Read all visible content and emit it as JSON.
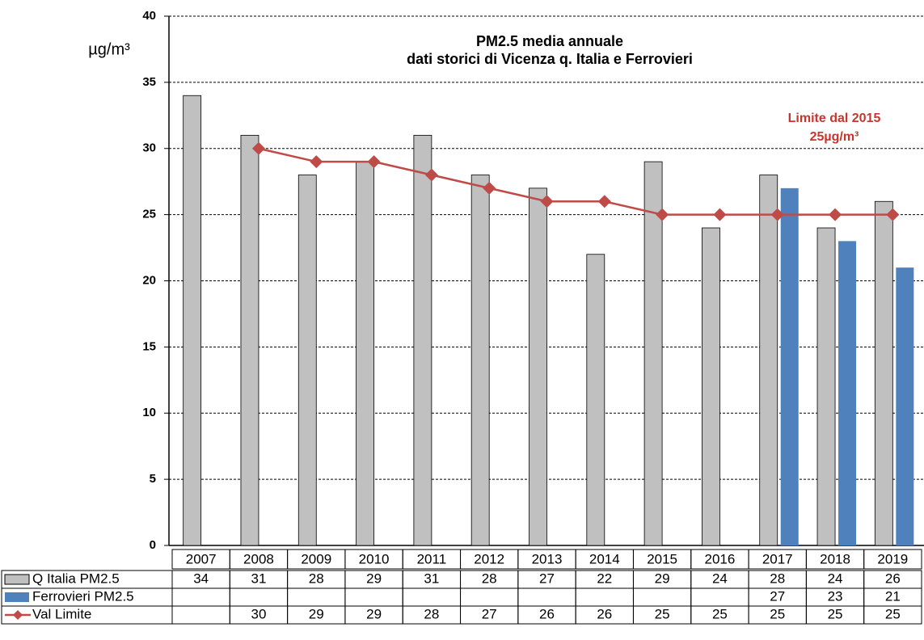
{
  "chart_data": {
    "type": "bar",
    "title": "PM2.5 media annuale",
    "subtitle": "dati storici di Vicenza q. Italia e Ferrovieri",
    "y_label": "µg/m³",
    "annotation": [
      "Limite dal 2015",
      "25µg/m³"
    ],
    "categories": [
      "2007",
      "2008",
      "2009",
      "2010",
      "2011",
      "2012",
      "2013",
      "2014",
      "2015",
      "2016",
      "2017",
      "2018",
      "2019"
    ],
    "series": [
      {
        "name": "Q Italia PM2.5",
        "type": "bar",
        "color": "#c0c0c0",
        "values": [
          34,
          31,
          28,
          29,
          31,
          28,
          27,
          22,
          29,
          24,
          28,
          24,
          26
        ]
      },
      {
        "name": "Ferrovieri PM2.5",
        "type": "bar",
        "color": "#4f81bd",
        "values": [
          null,
          null,
          null,
          null,
          null,
          null,
          null,
          null,
          null,
          null,
          27,
          23,
          21
        ]
      },
      {
        "name": "Val Limite",
        "type": "line",
        "color": "#be4b48",
        "values": [
          null,
          30,
          29,
          29,
          28,
          27,
          26,
          26,
          25,
          25,
          25,
          25,
          25
        ]
      }
    ],
    "ylim": [
      0,
      40
    ],
    "yticks": [
      0,
      5,
      10,
      15,
      20,
      25,
      30,
      35,
      40
    ],
    "grid": true
  }
}
